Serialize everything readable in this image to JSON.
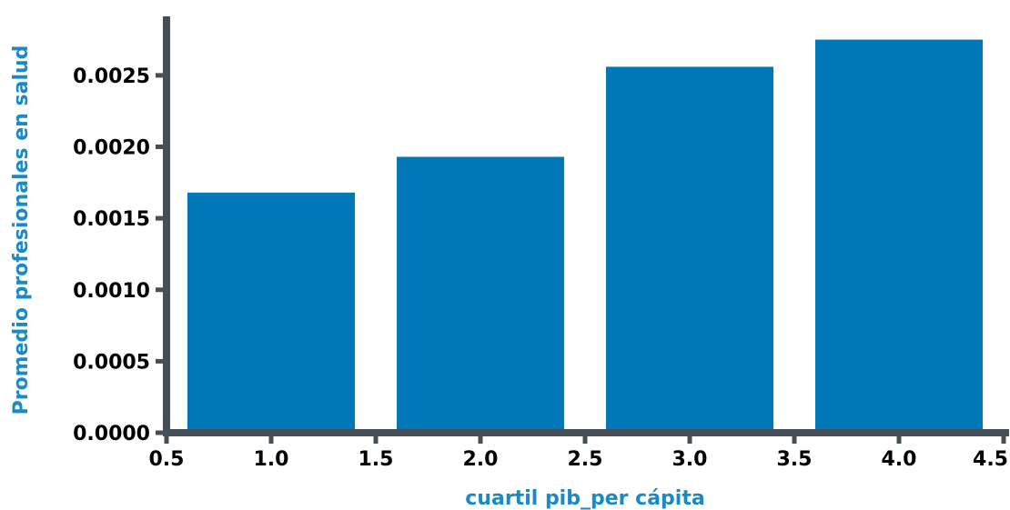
{
  "chart_data": {
    "type": "bar",
    "xlabel": "cuartil pib_per cápita",
    "ylabel": "Promedio profesionales en salud",
    "x": [
      1.0,
      2.0,
      3.0,
      4.0
    ],
    "values": [
      0.00168,
      0.00193,
      0.00256,
      0.00275
    ],
    "bar_width": 0.8,
    "xlim": [
      0.5,
      4.5
    ],
    "ylim": [
      0.0,
      0.0029
    ],
    "x_ticks": [
      0.5,
      1.0,
      1.5,
      2.0,
      2.5,
      3.0,
      3.5,
      4.0,
      4.5
    ],
    "x_tick_labels": [
      "0.5",
      "1.0",
      "1.5",
      "2.0",
      "2.5",
      "3.0",
      "3.5",
      "4.0",
      "4.5"
    ],
    "y_ticks": [
      0.0,
      0.0005,
      0.001,
      0.0015,
      0.002,
      0.0025
    ],
    "y_tick_labels": [
      "0.0000",
      "0.0005",
      "0.0010",
      "0.0015",
      "0.0020",
      "0.0025"
    ],
    "grid": false,
    "legend": "none",
    "colors": {
      "bar": "#0077b6",
      "axis": "#454f55",
      "axis_title": "#1a8ac7",
      "tick_label": "#000000"
    }
  }
}
